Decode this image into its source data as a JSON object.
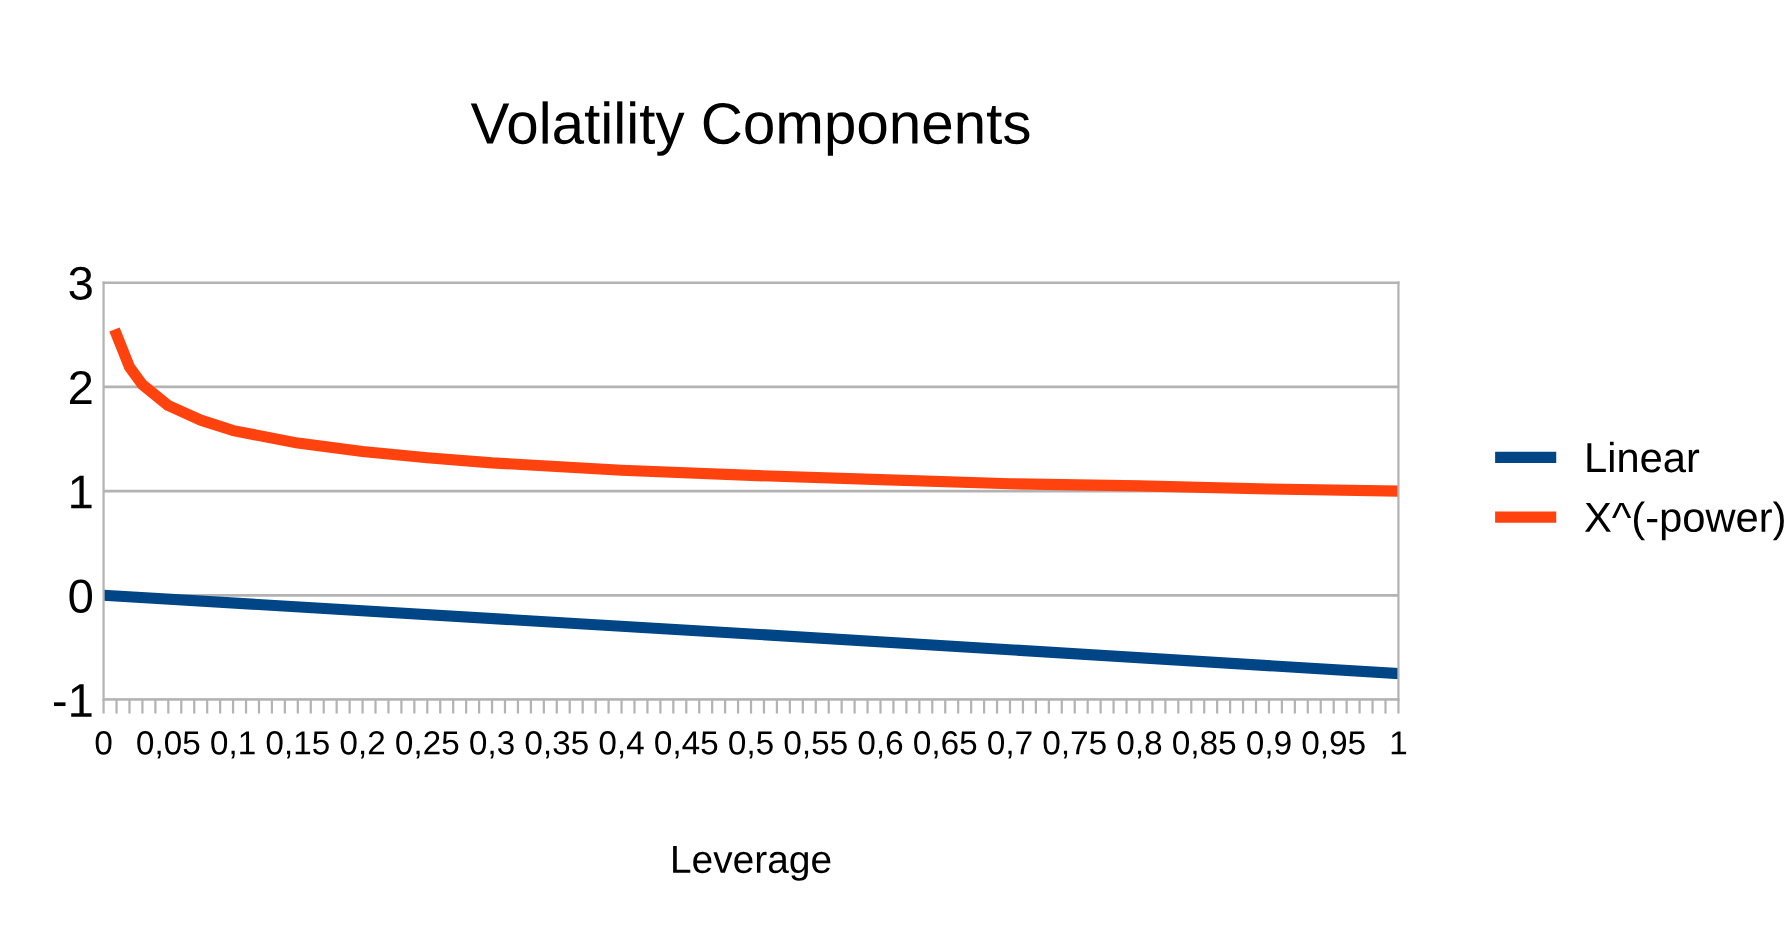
{
  "chart_data": {
    "type": "line",
    "title": "Volatility Components",
    "xlabel": "Leverage",
    "xlim": [
      0,
      1
    ],
    "ylim": [
      -1,
      3
    ],
    "yticks": [
      -1,
      0,
      1,
      2,
      3
    ],
    "xticks": [
      0,
      {
        "value": 0.01,
        "label": null
      },
      {
        "value": 0.02,
        "label": null
      },
      {
        "value": 0.03,
        "label": null
      },
      {
        "value": 0.04,
        "label": null
      },
      {
        "value": 0.05,
        "label": "0,05"
      },
      {
        "value": 0.06,
        "label": null
      },
      {
        "value": 0.07,
        "label": null
      },
      {
        "value": 0.08,
        "label": null
      },
      {
        "value": 0.09,
        "label": null
      },
      {
        "value": 0.1,
        "label": "0,1"
      },
      {
        "value": 0.11,
        "label": null
      },
      {
        "value": 0.12,
        "label": null
      },
      {
        "value": 0.13,
        "label": null
      },
      {
        "value": 0.14,
        "label": null
      },
      {
        "value": 0.15,
        "label": "0,15"
      },
      {
        "value": 0.16,
        "label": null
      },
      {
        "value": 0.17,
        "label": null
      },
      {
        "value": 0.18,
        "label": null
      },
      {
        "value": 0.19,
        "label": null
      },
      {
        "value": 0.2,
        "label": "0,2"
      },
      {
        "value": 0.21,
        "label": null
      },
      {
        "value": 0.22,
        "label": null
      },
      {
        "value": 0.23,
        "label": null
      },
      {
        "value": 0.24,
        "label": null
      },
      {
        "value": 0.25,
        "label": "0,25"
      },
      {
        "value": 0.26,
        "label": null
      },
      {
        "value": 0.27,
        "label": null
      },
      {
        "value": 0.28,
        "label": null
      },
      {
        "value": 0.29,
        "label": null
      },
      {
        "value": 0.3,
        "label": "0,3"
      },
      {
        "value": 0.31,
        "label": null
      },
      {
        "value": 0.32,
        "label": null
      },
      {
        "value": 0.33,
        "label": null
      },
      {
        "value": 0.34,
        "label": null
      },
      {
        "value": 0.35,
        "label": "0,35"
      },
      {
        "value": 0.36,
        "label": null
      },
      {
        "value": 0.37,
        "label": null
      },
      {
        "value": 0.38,
        "label": null
      },
      {
        "value": 0.39,
        "label": null
      },
      {
        "value": 0.4,
        "label": "0,4"
      },
      {
        "value": 0.41,
        "label": null
      },
      {
        "value": 0.42,
        "label": null
      },
      {
        "value": 0.43,
        "label": null
      },
      {
        "value": 0.44,
        "label": null
      },
      {
        "value": 0.45,
        "label": "0,45"
      },
      {
        "value": 0.46,
        "label": null
      },
      {
        "value": 0.47,
        "label": null
      },
      {
        "value": 0.48,
        "label": null
      },
      {
        "value": 0.49,
        "label": null
      },
      {
        "value": 0.5,
        "label": "0,5"
      },
      {
        "value": 0.51,
        "label": null
      },
      {
        "value": 0.52,
        "label": null
      },
      {
        "value": 0.53,
        "label": null
      },
      {
        "value": 0.54,
        "label": null
      },
      {
        "value": 0.55,
        "label": "0,55"
      },
      {
        "value": 0.56,
        "label": null
      },
      {
        "value": 0.57,
        "label": null
      },
      {
        "value": 0.58,
        "label": null
      },
      {
        "value": 0.59,
        "label": null
      },
      {
        "value": 0.6,
        "label": "0,6"
      },
      {
        "value": 0.61,
        "label": null
      },
      {
        "value": 0.62,
        "label": null
      },
      {
        "value": 0.63,
        "label": null
      },
      {
        "value": 0.64,
        "label": null
      },
      {
        "value": 0.65,
        "label": "0,65"
      },
      {
        "value": 0.66,
        "label": null
      },
      {
        "value": 0.67,
        "label": null
      },
      {
        "value": 0.68,
        "label": null
      },
      {
        "value": 0.69,
        "label": null
      },
      {
        "value": 0.7,
        "label": "0,7"
      },
      {
        "value": 0.71,
        "label": null
      },
      {
        "value": 0.72,
        "label": null
      },
      {
        "value": 0.73,
        "label": null
      },
      {
        "value": 0.74,
        "label": null
      },
      {
        "value": 0.75,
        "label": "0,75"
      },
      {
        "value": 0.76,
        "label": null
      },
      {
        "value": 0.77,
        "label": null
      },
      {
        "value": 0.78,
        "label": null
      },
      {
        "value": 0.79,
        "label": null
      },
      {
        "value": 0.8,
        "label": "0,8"
      },
      {
        "value": 0.81,
        "label": null
      },
      {
        "value": 0.82,
        "label": null
      },
      {
        "value": 0.83,
        "label": null
      },
      {
        "value": 0.84,
        "label": null
      },
      {
        "value": 0.85,
        "label": "0,85"
      },
      {
        "value": 0.86,
        "label": null
      },
      {
        "value": 0.87,
        "label": null
      },
      {
        "value": 0.88,
        "label": null
      },
      {
        "value": 0.89,
        "label": null
      },
      {
        "value": 0.9,
        "label": "0,9"
      },
      {
        "value": 0.91,
        "label": null
      },
      {
        "value": 0.92,
        "label": null
      },
      {
        "value": 0.93,
        "label": null
      },
      {
        "value": 0.94,
        "label": null
      },
      {
        "value": 0.95,
        "label": "0,95"
      },
      {
        "value": 0.96,
        "label": null
      },
      {
        "value": 0.97,
        "label": null
      },
      {
        "value": 0.98,
        "label": null
      },
      {
        "value": 0.99,
        "label": null
      },
      1
    ],
    "grid": "y",
    "legend": "right",
    "marker": "none",
    "line_style": "solid",
    "series": [
      {
        "name": "Linear",
        "color": "#004586",
        "x": [
          0,
          0.5,
          1
        ],
        "values": [
          0,
          -0.37,
          -0.75
        ]
      },
      {
        "name": "X^(-power)",
        "color": "#ff420e",
        "x": [
          0.01,
          0.02,
          0.03,
          0.05,
          0.075,
          0.1,
          0.15,
          0.2,
          0.25,
          0.3,
          0.4,
          0.5,
          0.6,
          0.7,
          0.8,
          0.9,
          1
        ],
        "values": [
          2.5,
          2.19,
          2.02,
          1.82,
          1.68,
          1.58,
          1.46,
          1.38,
          1.32,
          1.27,
          1.2,
          1.15,
          1.11,
          1.07,
          1.05,
          1.02,
          1.0
        ]
      }
    ]
  }
}
